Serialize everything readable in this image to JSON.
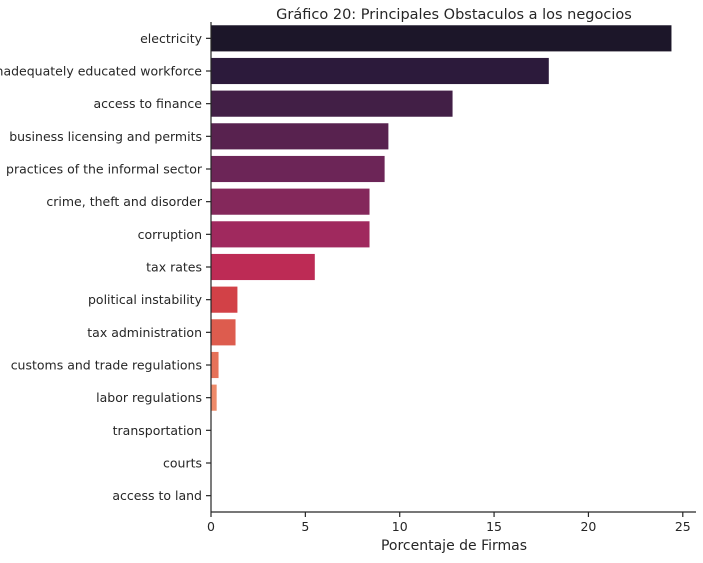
{
  "chart_data": {
    "type": "bar",
    "orientation": "horizontal",
    "title": "Gráfico 20: Principales Obstaculos a los negocios",
    "xlabel": "Porcentaje de Firmas",
    "ylabel": "",
    "xlim": [
      0,
      25.7
    ],
    "xticks": [
      0,
      5,
      10,
      15,
      20,
      25
    ],
    "categories": [
      "electricity",
      "inadequately educated workforce",
      "access to finance",
      "business licensing and permits",
      "practices of the informal sector",
      "crime, theft and disorder",
      "corruption",
      "tax rates",
      "political instability",
      "tax administration",
      "customs and trade regulations",
      "labor regulations",
      "transportation",
      "courts",
      "access to land"
    ],
    "values": [
      24.4,
      17.9,
      12.8,
      9.4,
      9.2,
      8.4,
      8.4,
      5.5,
      1.4,
      1.3,
      0.4,
      0.3,
      0.0,
      0.0,
      0.0
    ],
    "colors": [
      "#1c1629",
      "#2c1a3b",
      "#421f46",
      "#58224f",
      "#6c2557",
      "#84285b",
      "#a0295e",
      "#bd2b55",
      "#d24147",
      "#dd5c4e",
      "#e67259",
      "#ee8a69",
      "#f2a27d",
      "#f5bb96",
      "#f6d0b3"
    ],
    "grid": false,
    "legend": "none"
  }
}
